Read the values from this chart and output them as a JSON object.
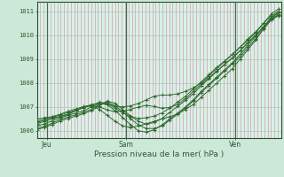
{
  "bg_color": "#cce8d8",
  "plot_bg_color": "#d8f0e8",
  "line_color": "#2d6a2d",
  "grid_color_h_major": "#a8c8b8",
  "grid_color_h_minor": "#b8d8c8",
  "grid_color_v_minor": "#d4a0a8",
  "vline_color": "#4a6a4a",
  "bottom_line_color": "#2d4a2d",
  "xlabel": "Pression niveau de la mer( hPa )",
  "xlabel_color": "#2d5a2d",
  "tick_color": "#2d5a2d",
  "ylim": [
    1005.7,
    1011.4
  ],
  "yticks": [
    1006,
    1007,
    1008,
    1009,
    1010,
    1011
  ],
  "xtick_labels": [
    "Jeu",
    "Sam",
    "Ven"
  ],
  "xtick_positions": [
    0.04,
    0.365,
    0.81
  ],
  "vline_positions": [
    0.04,
    0.365,
    0.81
  ],
  "series": [
    {
      "x": [
        0.0,
        0.032,
        0.064,
        0.096,
        0.128,
        0.16,
        0.192,
        0.224,
        0.256,
        0.288,
        0.32,
        0.352,
        0.384,
        0.416,
        0.448,
        0.48,
        0.512,
        0.544,
        0.576,
        0.608,
        0.64,
        0.672,
        0.704,
        0.736,
        0.768,
        0.8,
        0.832,
        0.864,
        0.896,
        0.928,
        0.96,
        0.99
      ],
      "y": [
        1006.4,
        1006.5,
        1006.55,
        1006.6,
        1006.7,
        1006.85,
        1007.0,
        1007.1,
        1007.15,
        1007.1,
        1007.05,
        1007.0,
        1007.05,
        1007.15,
        1007.3,
        1007.45,
        1007.5,
        1007.5,
        1007.55,
        1007.65,
        1007.8,
        1008.0,
        1008.3,
        1008.6,
        1008.9,
        1009.2,
        1009.5,
        1009.8,
        1010.1,
        1010.5,
        1010.9,
        1011.1
      ]
    },
    {
      "x": [
        0.0,
        0.032,
        0.064,
        0.096,
        0.128,
        0.16,
        0.192,
        0.224,
        0.256,
        0.288,
        0.32,
        0.352,
        0.384,
        0.416,
        0.448,
        0.48,
        0.512,
        0.544,
        0.576,
        0.608,
        0.64,
        0.672,
        0.704,
        0.736,
        0.768,
        0.8,
        0.832,
        0.864,
        0.896,
        0.928,
        0.96,
        0.99
      ],
      "y": [
        1006.3,
        1006.4,
        1006.5,
        1006.6,
        1006.7,
        1006.85,
        1007.0,
        1007.05,
        1006.9,
        1006.65,
        1006.4,
        1006.2,
        1006.15,
        1006.2,
        1006.3,
        1006.4,
        1006.5,
        1006.6,
        1006.7,
        1006.9,
        1007.1,
        1007.4,
        1007.7,
        1008.0,
        1008.3,
        1008.6,
        1009.0,
        1009.4,
        1009.8,
        1010.3,
        1010.75,
        1010.95
      ]
    },
    {
      "x": [
        0.0,
        0.032,
        0.064,
        0.096,
        0.128,
        0.16,
        0.192,
        0.224,
        0.256,
        0.288,
        0.32,
        0.352,
        0.384,
        0.416,
        0.448,
        0.48,
        0.512,
        0.544,
        0.576,
        0.608,
        0.64,
        0.672,
        0.704,
        0.736,
        0.768,
        0.8,
        0.832,
        0.864,
        0.896,
        0.928,
        0.96,
        0.99
      ],
      "y": [
        1006.2,
        1006.3,
        1006.42,
        1006.55,
        1006.65,
        1006.75,
        1006.85,
        1007.0,
        1007.15,
        1007.1,
        1006.85,
        1006.55,
        1006.25,
        1006.0,
        1005.95,
        1006.05,
        1006.25,
        1006.5,
        1006.75,
        1007.0,
        1007.3,
        1007.65,
        1007.95,
        1008.25,
        1008.55,
        1008.85,
        1009.2,
        1009.6,
        1009.95,
        1010.35,
        1010.75,
        1010.95
      ]
    },
    {
      "x": [
        0.0,
        0.032,
        0.064,
        0.096,
        0.128,
        0.16,
        0.192,
        0.224,
        0.256,
        0.288,
        0.32,
        0.352,
        0.384,
        0.416,
        0.448,
        0.48,
        0.512,
        0.544,
        0.576,
        0.608,
        0.64,
        0.672,
        0.704,
        0.736,
        0.768,
        0.8,
        0.832,
        0.864,
        0.896,
        0.928,
        0.96,
        0.99
      ],
      "y": [
        1006.1,
        1006.2,
        1006.33,
        1006.48,
        1006.58,
        1006.68,
        1006.78,
        1006.9,
        1007.1,
        1007.2,
        1007.05,
        1006.8,
        1006.5,
        1006.25,
        1006.1,
        1006.1,
        1006.2,
        1006.45,
        1006.7,
        1006.95,
        1007.25,
        1007.6,
        1007.9,
        1008.2,
        1008.5,
        1008.8,
        1009.1,
        1009.5,
        1009.85,
        1010.25,
        1010.65,
        1010.85
      ]
    },
    {
      "x": [
        0.0,
        0.032,
        0.064,
        0.096,
        0.128,
        0.16,
        0.192,
        0.224,
        0.256,
        0.288,
        0.32,
        0.352,
        0.384,
        0.416,
        0.448,
        0.48,
        0.512,
        0.544,
        0.576,
        0.608,
        0.64,
        0.672,
        0.704,
        0.736,
        0.768,
        0.8,
        0.832,
        0.864,
        0.896,
        0.928,
        0.96,
        0.99
      ],
      "y": [
        1006.5,
        1006.55,
        1006.6,
        1006.7,
        1006.82,
        1006.92,
        1007.02,
        1007.07,
        1007.0,
        1006.88,
        1006.8,
        1006.82,
        1006.9,
        1007.0,
        1007.07,
        1007.02,
        1006.95,
        1006.98,
        1007.1,
        1007.35,
        1007.65,
        1007.95,
        1008.22,
        1008.5,
        1008.78,
        1009.05,
        1009.35,
        1009.7,
        1010.0,
        1010.35,
        1010.7,
        1010.88
      ]
    },
    {
      "x": [
        0.0,
        0.032,
        0.064,
        0.096,
        0.128,
        0.16,
        0.192,
        0.224,
        0.256,
        0.288,
        0.32,
        0.352,
        0.384,
        0.416,
        0.448,
        0.48,
        0.512,
        0.544,
        0.576,
        0.608,
        0.64,
        0.672,
        0.704,
        0.736,
        0.768,
        0.8,
        0.832,
        0.864,
        0.896,
        0.928,
        0.96,
        0.99
      ],
      "y": [
        1006.35,
        1006.45,
        1006.57,
        1006.67,
        1006.77,
        1006.87,
        1006.97,
        1007.07,
        1007.2,
        1007.15,
        1006.95,
        1006.75,
        1006.6,
        1006.52,
        1006.55,
        1006.62,
        1006.75,
        1006.95,
        1007.2,
        1007.45,
        1007.75,
        1008.05,
        1008.35,
        1008.65,
        1008.92,
        1009.2,
        1009.5,
        1009.85,
        1010.15,
        1010.5,
        1010.82,
        1011.0
      ]
    },
    {
      "x": [
        0.0,
        0.032,
        0.064,
        0.096,
        0.128,
        0.16,
        0.192,
        0.224,
        0.256,
        0.288,
        0.32,
        0.352,
        0.384,
        0.416,
        0.448,
        0.48,
        0.512,
        0.544,
        0.576,
        0.608,
        0.64,
        0.672,
        0.704,
        0.736,
        0.768,
        0.8,
        0.832,
        0.864,
        0.896,
        0.928,
        0.96,
        0.99
      ],
      "y": [
        1006.05,
        1006.15,
        1006.27,
        1006.42,
        1006.52,
        1006.62,
        1006.72,
        1006.85,
        1007.05,
        1007.25,
        1007.15,
        1006.88,
        1006.62,
        1006.4,
        1006.28,
        1006.35,
        1006.52,
        1006.78,
        1007.02,
        1007.28,
        1007.55,
        1007.88,
        1008.18,
        1008.48,
        1008.78,
        1009.05,
        1009.35,
        1009.7,
        1010.0,
        1010.35,
        1010.65,
        1010.82
      ]
    }
  ]
}
